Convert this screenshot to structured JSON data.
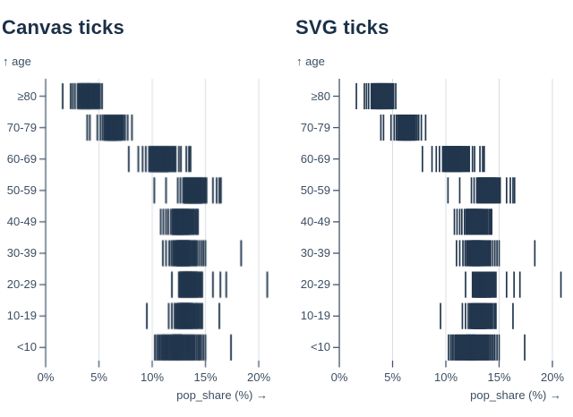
{
  "colors": {
    "background": "#ffffff",
    "title": "#1b3047",
    "axis_text": "#3c4e63",
    "axis_line": "#45566c",
    "grid": "#d8dce0",
    "tick": "#22374e"
  },
  "figures": [
    {
      "title": "Canvas ticks",
      "renderer": "canvas"
    },
    {
      "title": "SVG ticks",
      "renderer": "svg"
    }
  ],
  "chart_data": {
    "type": "tick",
    "note": "Two side-by-side strip (barcode) plots showing identical data rendered two ways; one tick per state per age bracket, value = share of state population in that bracket.",
    "grid": true,
    "x_axis": {
      "label": "pop_share (%) →",
      "tick_labels": [
        "0%",
        "5%",
        "10%",
        "15%",
        "20%"
      ],
      "tick_values": [
        0,
        5,
        10,
        15,
        20
      ],
      "domain": [
        0,
        21.2
      ]
    },
    "y_axis": {
      "label": "↑ age",
      "categories": [
        "≥80",
        "70-79",
        "60-69",
        "50-59",
        "40-49",
        "30-39",
        "20-29",
        "10-19",
        "<10"
      ]
    },
    "series": [
      {
        "age": "≥80",
        "values": [
          1.6,
          2.35,
          2.55,
          2.75,
          3.0,
          3.1,
          3.15,
          3.2,
          3.25,
          3.3,
          3.35,
          3.4,
          3.45,
          3.5,
          3.55,
          3.55,
          3.6,
          3.65,
          3.7,
          3.7,
          3.75,
          3.8,
          3.8,
          3.85,
          3.9,
          3.9,
          3.95,
          4.0,
          4.0,
          4.05,
          4.1,
          4.1,
          4.15,
          4.2,
          4.25,
          4.3,
          4.3,
          4.35,
          4.4,
          4.45,
          4.5,
          4.55,
          4.6,
          4.65,
          4.7,
          4.75,
          4.8,
          4.85,
          4.9,
          5.0,
          5.1,
          5.3
        ]
      },
      {
        "age": "70-79",
        "values": [
          3.9,
          4.15,
          4.85,
          5.15,
          5.35,
          5.5,
          5.55,
          5.6,
          5.65,
          5.7,
          5.75,
          5.8,
          5.85,
          5.9,
          5.9,
          5.95,
          6.0,
          6.0,
          6.05,
          6.1,
          6.1,
          6.15,
          6.2,
          6.2,
          6.25,
          6.3,
          6.3,
          6.35,
          6.4,
          6.4,
          6.45,
          6.5,
          6.5,
          6.55,
          6.6,
          6.6,
          6.65,
          6.7,
          6.7,
          6.75,
          6.8,
          6.85,
          6.9,
          6.95,
          7.0,
          7.05,
          7.1,
          7.15,
          7.3,
          7.45,
          7.7,
          8.1
        ]
      },
      {
        "age": "60-69",
        "values": [
          7.8,
          8.7,
          9.1,
          9.4,
          9.7,
          9.8,
          9.85,
          9.9,
          10.0,
          10.05,
          10.1,
          10.15,
          10.2,
          10.25,
          10.3,
          10.35,
          10.4,
          10.45,
          10.5,
          10.55,
          10.6,
          10.65,
          10.7,
          10.75,
          10.8,
          10.85,
          10.9,
          10.95,
          11.0,
          11.05,
          11.1,
          11.15,
          11.2,
          11.25,
          11.3,
          11.35,
          11.4,
          11.45,
          11.5,
          11.55,
          11.65,
          11.75,
          11.85,
          11.95,
          12.05,
          12.15,
          12.2,
          12.5,
          12.7,
          13.2,
          13.45,
          13.6
        ]
      },
      {
        "age": "50-59",
        "values": [
          10.2,
          11.3,
          12.4,
          12.65,
          12.9,
          13.0,
          13.05,
          13.1,
          13.15,
          13.2,
          13.25,
          13.3,
          13.35,
          13.4,
          13.45,
          13.5,
          13.5,
          13.55,
          13.6,
          13.65,
          13.7,
          13.7,
          13.75,
          13.8,
          13.85,
          13.9,
          13.9,
          13.95,
          14.0,
          14.05,
          14.1,
          14.1,
          14.15,
          14.2,
          14.25,
          14.3,
          14.35,
          14.4,
          14.45,
          14.5,
          14.55,
          14.6,
          14.65,
          14.7,
          14.8,
          14.9,
          15.0,
          15.1,
          15.7,
          16.05,
          16.3,
          16.45
        ]
      },
      {
        "age": "40-49",
        "values": [
          10.8,
          11.05,
          11.3,
          11.5,
          11.75,
          11.9,
          11.95,
          12.0,
          12.05,
          12.1,
          12.15,
          12.2,
          12.25,
          12.3,
          12.3,
          12.35,
          12.4,
          12.4,
          12.45,
          12.5,
          12.5,
          12.55,
          12.6,
          12.6,
          12.65,
          12.7,
          12.7,
          12.75,
          12.8,
          12.8,
          12.85,
          12.9,
          12.9,
          12.95,
          13.0,
          13.05,
          13.1,
          13.15,
          13.2,
          13.25,
          13.3,
          13.35,
          13.4,
          13.5,
          13.55,
          13.65,
          13.75,
          13.85,
          13.95,
          14.1,
          14.2,
          14.3
        ]
      },
      {
        "age": "30-39",
        "values": [
          11.0,
          11.3,
          11.6,
          11.8,
          11.95,
          12.05,
          12.15,
          12.25,
          12.3,
          12.35,
          12.4,
          12.45,
          12.5,
          12.55,
          12.55,
          12.6,
          12.6,
          12.65,
          12.7,
          12.7,
          12.75,
          12.8,
          12.8,
          12.85,
          12.9,
          12.9,
          12.95,
          13.0,
          13.0,
          13.05,
          13.1,
          13.1,
          13.15,
          13.2,
          13.25,
          13.3,
          13.35,
          13.4,
          13.45,
          13.5,
          13.6,
          13.7,
          13.8,
          13.9,
          14.0,
          14.1,
          14.2,
          14.4,
          14.6,
          14.8,
          15.0,
          18.35
        ]
      },
      {
        "age": "20-29",
        "values": [
          11.85,
          12.5,
          12.6,
          12.65,
          12.7,
          12.75,
          12.8,
          12.85,
          12.9,
          12.95,
          13.0,
          13.0,
          13.05,
          13.1,
          13.1,
          13.15,
          13.2,
          13.2,
          13.25,
          13.3,
          13.3,
          13.35,
          13.4,
          13.4,
          13.45,
          13.5,
          13.5,
          13.55,
          13.6,
          13.6,
          13.65,
          13.7,
          13.7,
          13.75,
          13.8,
          13.85,
          13.9,
          13.95,
          14.0,
          14.05,
          14.1,
          14.15,
          14.2,
          14.3,
          14.4,
          14.5,
          14.6,
          14.7,
          15.7,
          16.4,
          16.95,
          20.8
        ]
      },
      {
        "age": "10-19",
        "values": [
          9.5,
          11.55,
          11.85,
          12.1,
          12.25,
          12.35,
          12.45,
          12.5,
          12.55,
          12.6,
          12.65,
          12.7,
          12.7,
          12.75,
          12.8,
          12.8,
          12.85,
          12.9,
          12.9,
          12.95,
          13.0,
          13.0,
          13.05,
          13.1,
          13.1,
          13.15,
          13.2,
          13.2,
          13.25,
          13.3,
          13.3,
          13.35,
          13.4,
          13.4,
          13.45,
          13.45,
          13.5,
          13.55,
          13.6,
          13.65,
          13.7,
          13.75,
          13.8,
          13.9,
          14.0,
          14.1,
          14.2,
          14.3,
          14.45,
          14.6,
          14.7,
          16.3
        ]
      },
      {
        "age": "<10",
        "values": [
          10.25,
          10.45,
          10.6,
          10.75,
          10.9,
          11.0,
          11.1,
          11.2,
          11.3,
          11.4,
          11.5,
          11.6,
          11.7,
          11.8,
          11.9,
          11.95,
          12.0,
          12.05,
          12.1,
          12.15,
          12.2,
          12.25,
          12.3,
          12.35,
          12.4,
          12.45,
          12.5,
          12.55,
          12.6,
          12.65,
          12.7,
          12.75,
          12.8,
          12.9,
          13.0,
          13.1,
          13.2,
          13.3,
          13.4,
          13.5,
          13.6,
          13.7,
          13.8,
          13.9,
          14.0,
          14.15,
          14.3,
          14.45,
          14.6,
          14.8,
          15.0,
          17.4
        ]
      }
    ]
  }
}
